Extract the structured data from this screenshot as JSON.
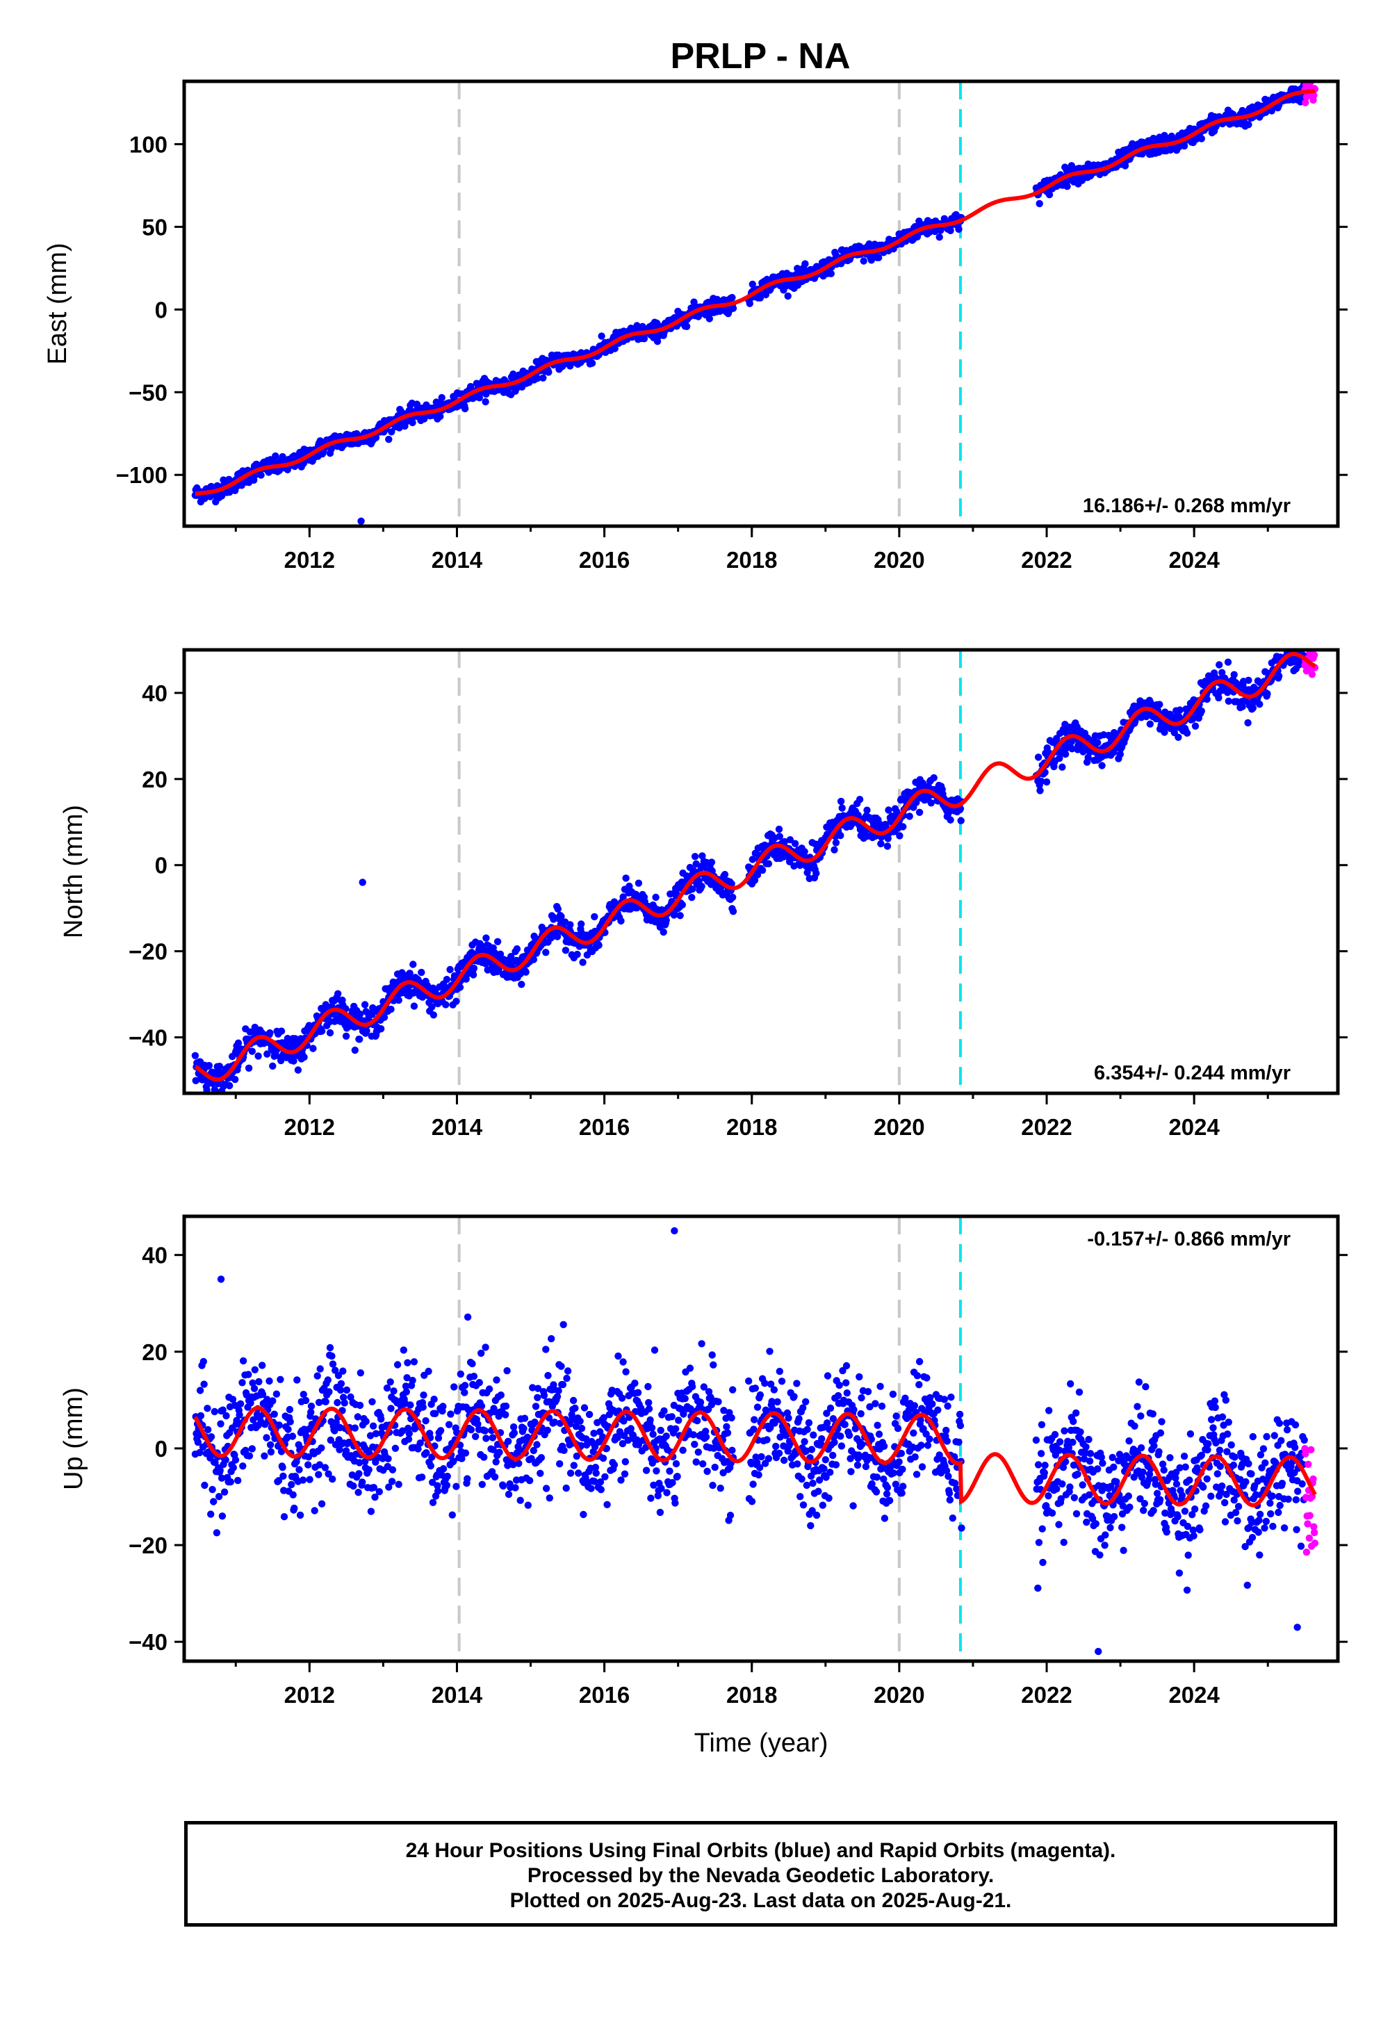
{
  "title": "PRLP - NA",
  "footer": {
    "line1": "24 Hour Positions Using Final Orbits (blue) and Rapid Orbits (magenta).",
    "line2": "Processed by the Nevada Geodetic Laboratory.",
    "line3": "Plotted on 2025-Aug-23. Last data on 2025-Aug-21."
  },
  "colors": {
    "final_orbits": "#0000ff",
    "rapid_orbits": "#ff00ff",
    "model": "#ff0000",
    "event_gray": "#c8c8c8",
    "event_cyan": "#00e5ee"
  },
  "chart_data": [
    {
      "type": "scatter",
      "ylabel": "East (mm)",
      "xlabel": "",
      "xlim": [
        2010.3,
        2025.95
      ],
      "ylim": [
        -131,
        138
      ],
      "yticks": [
        -100,
        -50,
        0,
        50,
        100
      ],
      "xticks": [
        2012,
        2014,
        2016,
        2018,
        2020,
        2022,
        2024
      ],
      "rate_label": "16.186+/- 0.268 mm/yr",
      "rate_position": "bottom-right",
      "trend": {
        "velocity": 16.186,
        "value_at_2020": 42
      },
      "noise_sd": 2.5,
      "seasonal_amplitude": 1.8,
      "data_start": 2010.45,
      "data_end": 2025.64,
      "gap": [
        2020.85,
        2021.85
      ],
      "outliers": [
        {
          "x": 2012.7,
          "y": -128
        }
      ],
      "rapid_range": [
        2025.5,
        2025.64
      ],
      "event_lines": [
        {
          "x": 2014.03,
          "color": "gray"
        },
        {
          "x": 2020.0,
          "color": "gray"
        },
        {
          "x": 2020.83,
          "color": "cyan"
        }
      ]
    },
    {
      "type": "scatter",
      "ylabel": "North (mm)",
      "xlabel": "",
      "xlim": [
        2010.3,
        2025.95
      ],
      "ylim": [
        -53,
        50
      ],
      "yticks": [
        -40,
        -20,
        0,
        20,
        40
      ],
      "xticks": [
        2012,
        2014,
        2016,
        2018,
        2020,
        2022,
        2024
      ],
      "rate_label": "6.354+/- 0.244 mm/yr",
      "rate_position": "bottom-right",
      "trend": {
        "velocity": 6.354,
        "value_at_2020": 12
      },
      "noise_sd": 1.8,
      "seasonal_amplitude": 3.2,
      "data_start": 2010.45,
      "data_end": 2025.64,
      "gap": [
        2020.85,
        2021.85
      ],
      "outliers": [
        {
          "x": 2012.72,
          "y": -4
        }
      ],
      "rapid_range": [
        2025.5,
        2025.64
      ],
      "event_lines": [
        {
          "x": 2014.03,
          "color": "gray"
        },
        {
          "x": 2020.0,
          "color": "gray"
        },
        {
          "x": 2020.83,
          "color": "cyan"
        }
      ]
    },
    {
      "type": "scatter",
      "ylabel": "Up (mm)",
      "xlabel": "Time (year)",
      "xlim": [
        2010.3,
        2025.95
      ],
      "ylim": [
        -44,
        48
      ],
      "yticks": [
        -40,
        -20,
        0,
        20,
        40
      ],
      "xticks": [
        2012,
        2014,
        2016,
        2018,
        2020,
        2022,
        2024
      ],
      "rate_label": "-0.157+/- 0.866 mm/yr",
      "rate_position": "top-right",
      "trend": {
        "velocity": -0.157,
        "value_at_2020": 2
      },
      "noise_sd": 6.0,
      "seasonal_amplitude": 5.0,
      "offset_after_2020_83": -8,
      "data_start": 2010.45,
      "data_end": 2025.64,
      "gap": [
        2020.85,
        2021.85
      ],
      "outliers": [
        {
          "x": 2016.95,
          "y": 45
        },
        {
          "x": 2010.8,
          "y": 35
        },
        {
          "x": 2022.7,
          "y": -42
        },
        {
          "x": 2025.4,
          "y": -37
        }
      ],
      "rapid_range": [
        2025.5,
        2025.64
      ],
      "event_lines": [
        {
          "x": 2014.03,
          "color": "gray"
        },
        {
          "x": 2020.0,
          "color": "gray"
        },
        {
          "x": 2020.83,
          "color": "cyan"
        }
      ]
    }
  ]
}
